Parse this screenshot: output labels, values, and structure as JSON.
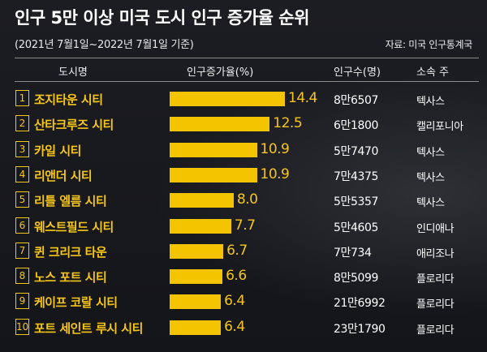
{
  "title": "인구 5만 이상 미국 도시 인구 증가율 순위",
  "subtitle": "(2021년 7월1일~2022년 7월1일 기준)",
  "source": "자료: 미국 인구통계국",
  "headers": {
    "city": "도시명",
    "rate": "인구증가율(%)",
    "population": "인구수(명)",
    "state": "소속 주"
  },
  "colors": {
    "accent": "#f5c518",
    "bar": "#f5c400",
    "background": "#17181c"
  },
  "chart_data": {
    "type": "bar",
    "orientation": "horizontal",
    "title": "인구 5만 이상 미국 도시 인구 증가율 순위",
    "subtitle": "(2021년 7월1일~2022년 7월1일 기준)",
    "ylabel": "인구증가율(%)",
    "xlim": [
      0,
      14.4
    ],
    "categories": [
      "조지타운 시티",
      "산타크루즈 시티",
      "카일 시티",
      "리앤더 시티",
      "리틀 엘름 시티",
      "웨스트필드 시티",
      "퀸 크리크 타운",
      "노스 포트 시티",
      "케이프 코랄 시티",
      "포트 세인트 루시 시티"
    ],
    "ranks": [
      "1",
      "2",
      "3",
      "4",
      "5",
      "6",
      "7",
      "8",
      "9",
      "10"
    ],
    "values": [
      14.4,
      12.5,
      10.9,
      10.9,
      8.0,
      7.7,
      6.7,
      6.6,
      6.4,
      6.4
    ],
    "value_labels": [
      "14.4",
      "12.5",
      "10.9",
      "10.9",
      "8.0",
      "7.7",
      "6.7",
      "6.6",
      "6.4",
      "6.4"
    ],
    "population": [
      "8만6507",
      "6만1800",
      "5만7470",
      "7만4375",
      "5만5357",
      "5만4605",
      "7만734",
      "8만5099",
      "21만6992",
      "23만1790"
    ],
    "states": [
      "텍사스",
      "캘리포니아",
      "텍사스",
      "텍사스",
      "텍사스",
      "인디애나",
      "애리조나",
      "플로리다",
      "플로리다",
      "플로리다"
    ]
  }
}
